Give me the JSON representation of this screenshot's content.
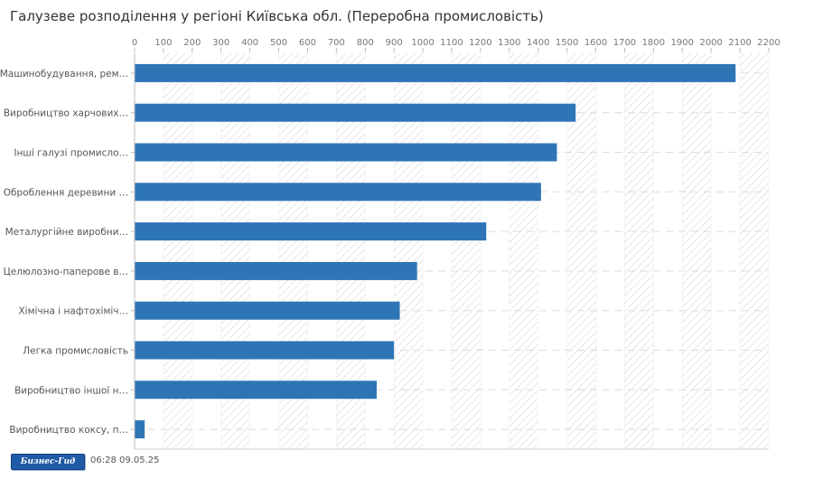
{
  "chart_data": {
    "type": "bar",
    "orientation": "horizontal",
    "title": "Галузеве розподілення у регіоні Київська обл. (Переробна промисловість)",
    "xlim": [
      0,
      2200
    ],
    "x_ticks": [
      0,
      100,
      200,
      300,
      400,
      500,
      600,
      700,
      800,
      900,
      1000,
      1100,
      1200,
      1300,
      1400,
      1500,
      1600,
      1700,
      1800,
      1900,
      2000,
      2100,
      2200
    ],
    "x_axis_position": "top",
    "grid": true,
    "categories": [
      "Машинобудування, рем…",
      "Виробництво харчових…",
      "Інші галузі промисло…",
      "Оброблення деревини …",
      "Металургійне виробни…",
      "Целюлозно-паперове в…",
      "Хімічна і нафтохіміч…",
      "Легка промисловість",
      "Виробництво іншої н…",
      "Виробництво коксу, п…"
    ],
    "values": [
      2085,
      1530,
      1465,
      1410,
      1220,
      980,
      920,
      900,
      840,
      35
    ],
    "bar_color": "#2e75b6"
  },
  "footer": {
    "logo_text": "Бизнес-Гид",
    "timestamp": "06:28 09.05.25"
  }
}
